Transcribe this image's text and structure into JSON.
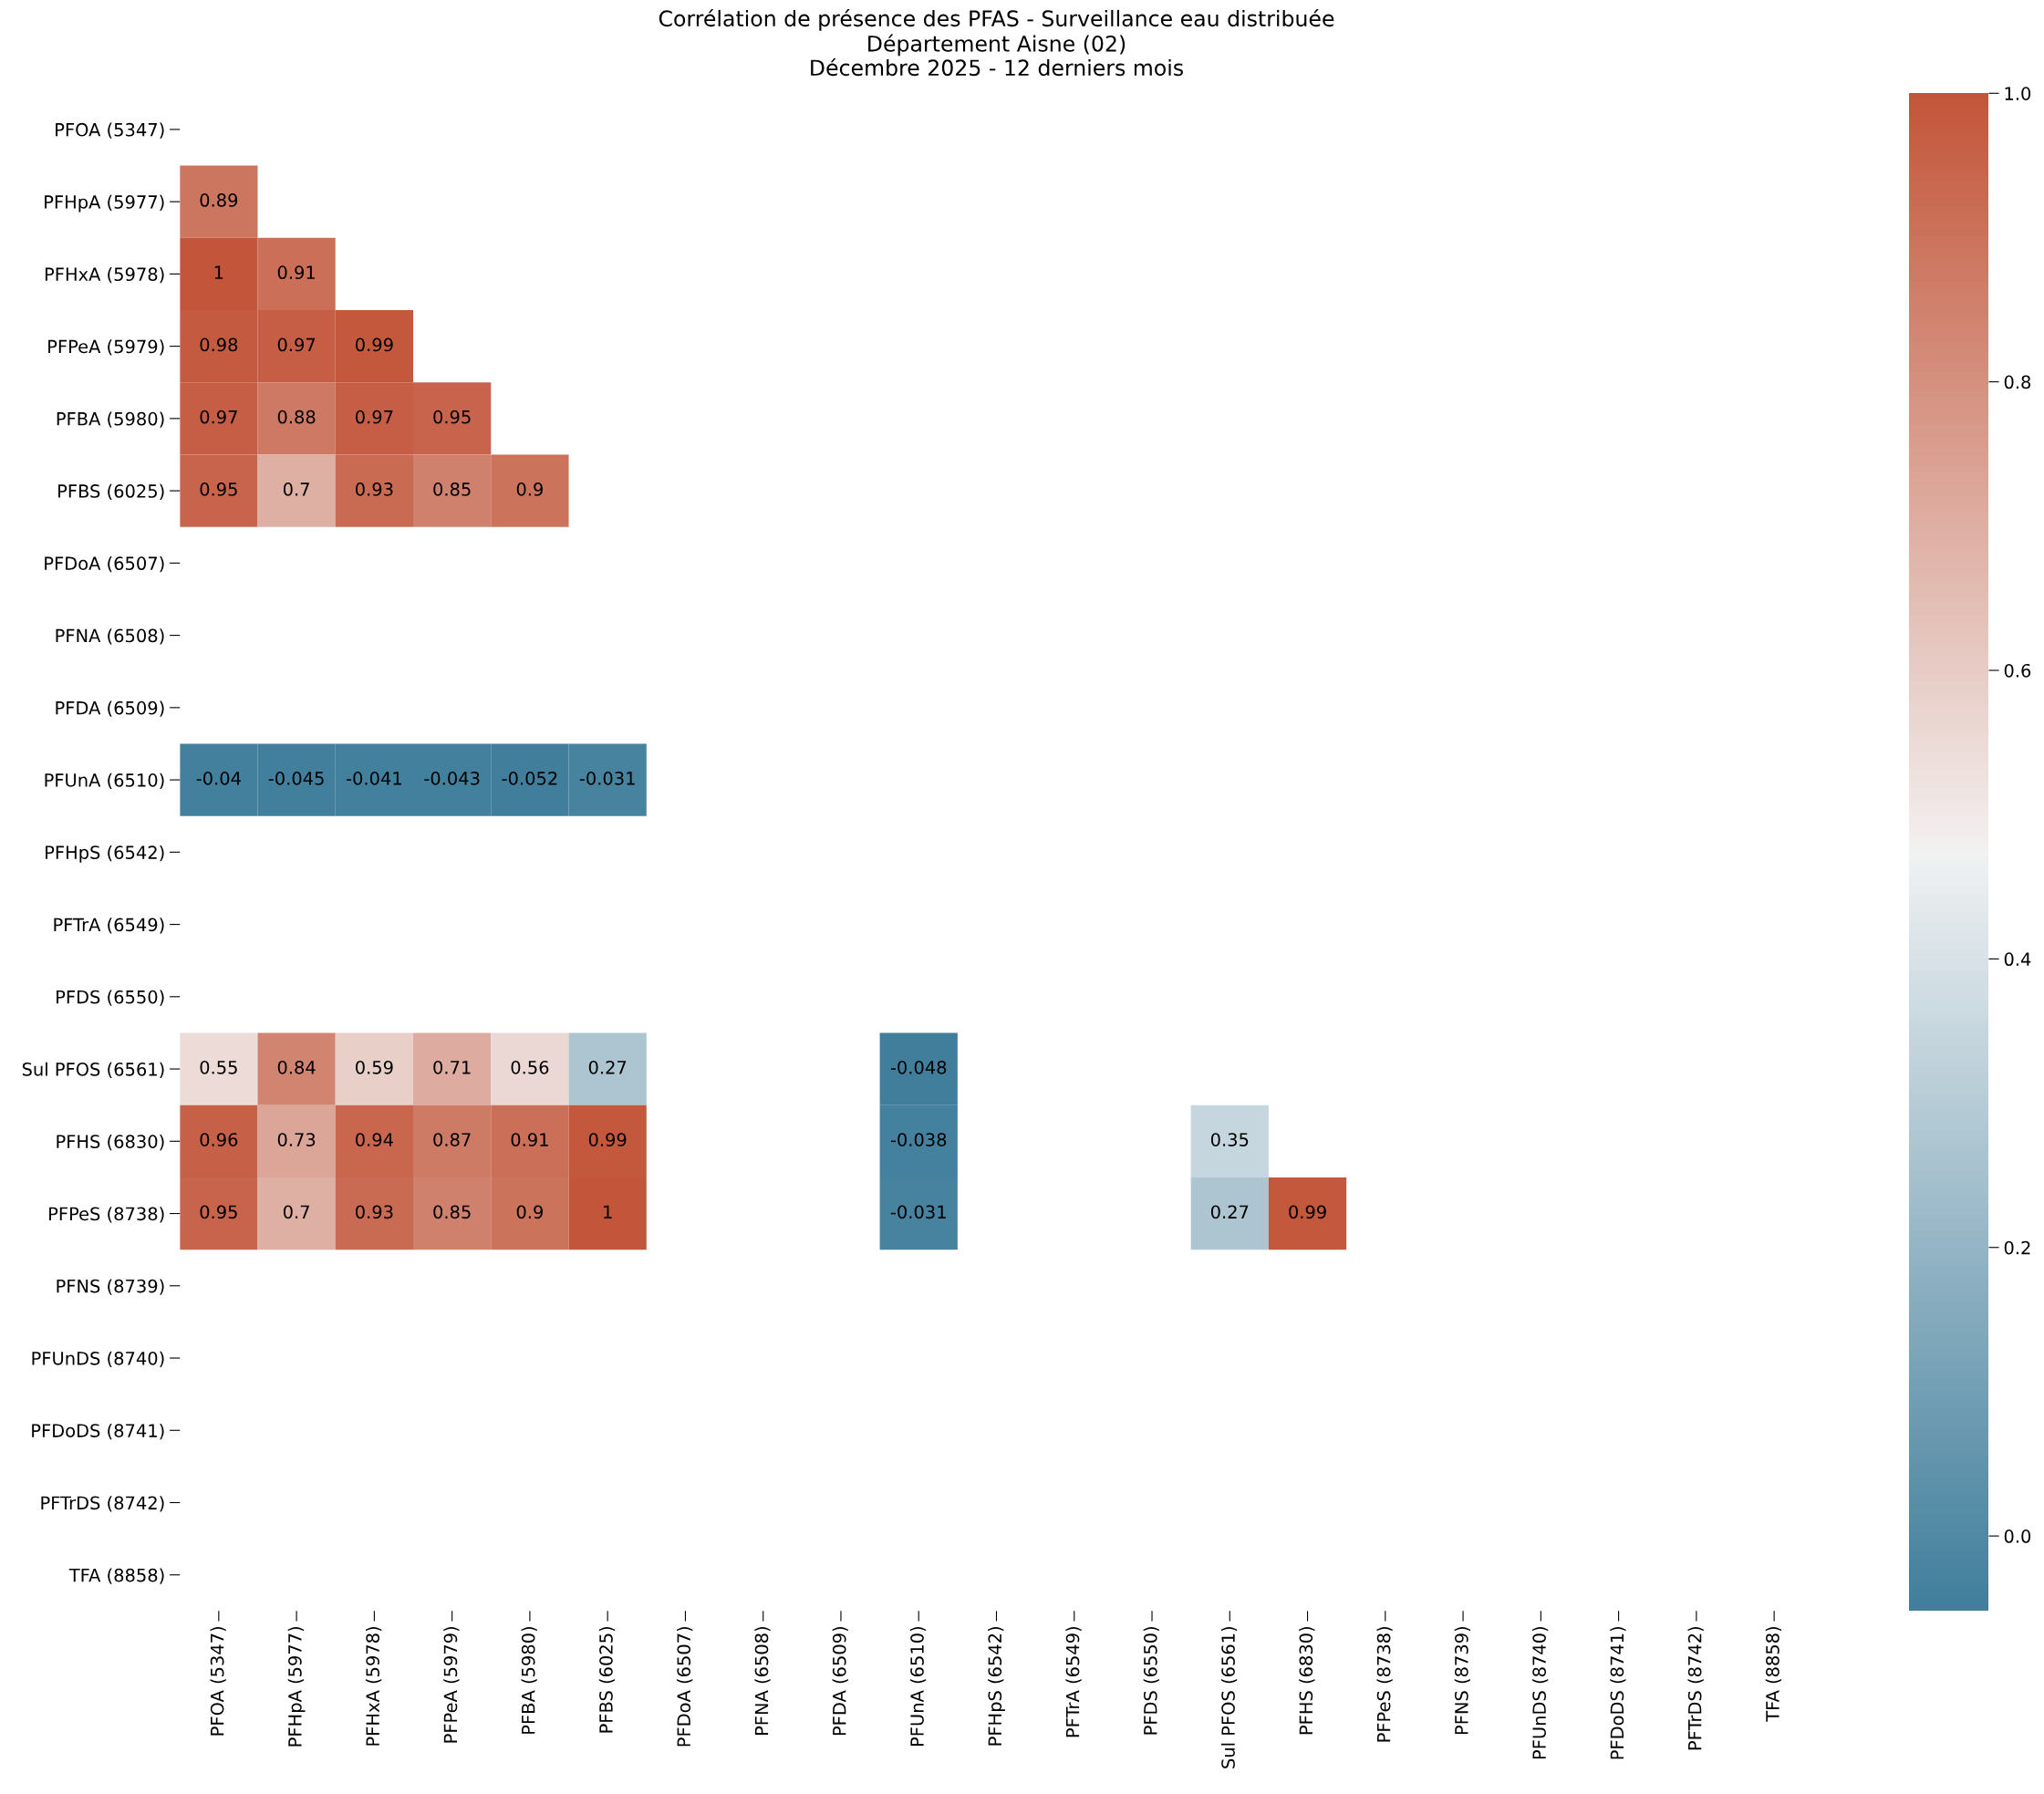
{
  "chart_data": {
    "type": "heatmap",
    "title": "Corrélation de présence des PFAS - Surveillance eau distribuée\nDépartement Aisne (02)\nDécembre 2025 - 12 derniers mois",
    "categories": [
      "PFOA (5347)",
      "PFHpA (5977)",
      "PFHxA (5978)",
      "PFPeA (5979)",
      "PFBA (5980)",
      "PFBS (6025)",
      "PFDoA (6507)",
      "PFNA (6508)",
      "PFDA (6509)",
      "PFUnA (6510)",
      "PFHpS (6542)",
      "PFTrA (6549)",
      "PFDS (6550)",
      "Sul PFOS (6561)",
      "PFHS (6830)",
      "PFPeS (8738)",
      "PFNS (8739)",
      "PFUnDS (8740)",
      "PFDoDS (8741)",
      "PFTrDS (8742)",
      "TFA (8858)"
    ],
    "y_categories": [
      "PFOA (5347)",
      "PFHpA (5977)",
      "PFHxA (5978)",
      "PFPeA (5979)",
      "PFBA (5980)",
      "PFBS (6025)",
      "PFDoA (6507)",
      "PFNA (6508)",
      "PFDA (6509)",
      "PFUnA (6510)",
      "PFHpS (6542)",
      "PFTrA (6549)",
      "PFDS (6550)",
      "Sul PFOS (6561)",
      "PFHS (6830)",
      "PFPeS (8738)",
      "PFNS (8739)",
      "PFUnDS (8740)",
      "PFDoDS (8741)",
      "PFTrDS (8742)",
      "TFA (8858)"
    ],
    "cells": [
      [
        null,
        null,
        null,
        null,
        null,
        null,
        null,
        null,
        null,
        null,
        null,
        null,
        null,
        null,
        null,
        null,
        null,
        null,
        null,
        null,
        null
      ],
      [
        0.89,
        null,
        null,
        null,
        null,
        null,
        null,
        null,
        null,
        null,
        null,
        null,
        null,
        null,
        null,
        null,
        null,
        null,
        null,
        null,
        null
      ],
      [
        1,
        0.91,
        null,
        null,
        null,
        null,
        null,
        null,
        null,
        null,
        null,
        null,
        null,
        null,
        null,
        null,
        null,
        null,
        null,
        null,
        null
      ],
      [
        0.98,
        0.97,
        0.99,
        null,
        null,
        null,
        null,
        null,
        null,
        null,
        null,
        null,
        null,
        null,
        null,
        null,
        null,
        null,
        null,
        null,
        null
      ],
      [
        0.97,
        0.88,
        0.97,
        0.95,
        null,
        null,
        null,
        null,
        null,
        null,
        null,
        null,
        null,
        null,
        null,
        null,
        null,
        null,
        null,
        null,
        null
      ],
      [
        0.95,
        0.7,
        0.93,
        0.85,
        0.9,
        null,
        null,
        null,
        null,
        null,
        null,
        null,
        null,
        null,
        null,
        null,
        null,
        null,
        null,
        null,
        null
      ],
      [
        null,
        null,
        null,
        null,
        null,
        null,
        null,
        null,
        null,
        null,
        null,
        null,
        null,
        null,
        null,
        null,
        null,
        null,
        null,
        null,
        null
      ],
      [
        null,
        null,
        null,
        null,
        null,
        null,
        null,
        null,
        null,
        null,
        null,
        null,
        null,
        null,
        null,
        null,
        null,
        null,
        null,
        null,
        null
      ],
      [
        null,
        null,
        null,
        null,
        null,
        null,
        null,
        null,
        null,
        null,
        null,
        null,
        null,
        null,
        null,
        null,
        null,
        null,
        null,
        null,
        null
      ],
      [
        -0.04,
        -0.045,
        -0.041,
        -0.043,
        -0.052,
        -0.031,
        null,
        null,
        null,
        null,
        null,
        null,
        null,
        null,
        null,
        null,
        null,
        null,
        null,
        null,
        null
      ],
      [
        null,
        null,
        null,
        null,
        null,
        null,
        null,
        null,
        null,
        null,
        null,
        null,
        null,
        null,
        null,
        null,
        null,
        null,
        null,
        null,
        null
      ],
      [
        null,
        null,
        null,
        null,
        null,
        null,
        null,
        null,
        null,
        null,
        null,
        null,
        null,
        null,
        null,
        null,
        null,
        null,
        null,
        null,
        null
      ],
      [
        null,
        null,
        null,
        null,
        null,
        null,
        null,
        null,
        null,
        null,
        null,
        null,
        null,
        null,
        null,
        null,
        null,
        null,
        null,
        null,
        null
      ],
      [
        0.55,
        0.84,
        0.59,
        0.71,
        0.56,
        0.27,
        null,
        null,
        null,
        -0.048,
        null,
        null,
        null,
        null,
        null,
        null,
        null,
        null,
        null,
        null,
        null
      ],
      [
        0.96,
        0.73,
        0.94,
        0.87,
        0.91,
        0.99,
        null,
        null,
        null,
        -0.038,
        null,
        null,
        null,
        0.35,
        null,
        null,
        null,
        null,
        null,
        null,
        null
      ],
      [
        0.95,
        0.7,
        0.93,
        0.85,
        0.9,
        1,
        null,
        null,
        null,
        -0.031,
        null,
        null,
        null,
        0.27,
        0.99,
        null,
        null,
        null,
        null,
        null,
        null
      ],
      [
        null,
        null,
        null,
        null,
        null,
        null,
        null,
        null,
        null,
        null,
        null,
        null,
        null,
        null,
        null,
        null,
        null,
        null,
        null,
        null,
        null
      ],
      [
        null,
        null,
        null,
        null,
        null,
        null,
        null,
        null,
        null,
        null,
        null,
        null,
        null,
        null,
        null,
        null,
        null,
        null,
        null,
        null,
        null
      ],
      [
        null,
        null,
        null,
        null,
        null,
        null,
        null,
        null,
        null,
        null,
        null,
        null,
        null,
        null,
        null,
        null,
        null,
        null,
        null,
        null,
        null
      ],
      [
        null,
        null,
        null,
        null,
        null,
        null,
        null,
        null,
        null,
        null,
        null,
        null,
        null,
        null,
        null,
        null,
        null,
        null,
        null,
        null,
        null
      ],
      [
        null,
        null,
        null,
        null,
        null,
        null,
        null,
        null,
        null,
        null,
        null,
        null,
        null,
        null,
        null,
        null,
        null,
        null,
        null,
        null,
        null
      ]
    ],
    "clim": [
      -0.052,
      1
    ],
    "cticks": [
      {
        "value": 0,
        "label": "0.0"
      },
      {
        "value": 0.2,
        "label": "0.2"
      },
      {
        "value": 0.4,
        "label": "0.4"
      },
      {
        "value": 0.6,
        "label": "0.6"
      },
      {
        "value": 0.8,
        "label": "0.8"
      },
      {
        "value": 1,
        "label": "1.0"
      }
    ],
    "data_labels": true
  }
}
